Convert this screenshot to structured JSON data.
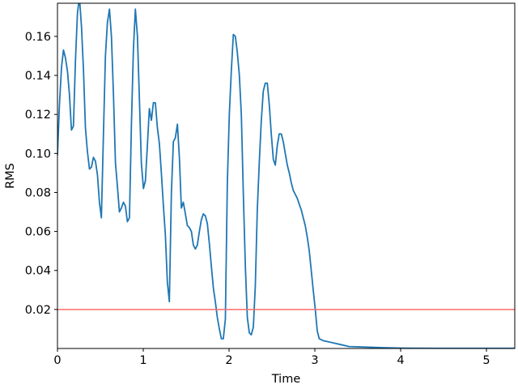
{
  "chart_data": {
    "type": "line",
    "title": "",
    "xlabel": "Time",
    "ylabel": "RMS",
    "xlim": [
      0,
      5.33
    ],
    "ylim": [
      0,
      0.177
    ],
    "xticks": [
      {
        "value": 0,
        "label": "0"
      },
      {
        "value": 1,
        "label": "1"
      },
      {
        "value": 2,
        "label": "2"
      },
      {
        "value": 3,
        "label": "3"
      },
      {
        "value": 4,
        "label": "4"
      },
      {
        "value": 5,
        "label": "5"
      }
    ],
    "yticks": [
      {
        "value": 0.02,
        "label": "0.02"
      },
      {
        "value": 0.04,
        "label": "0.04"
      },
      {
        "value": 0.06,
        "label": "0.06"
      },
      {
        "value": 0.08,
        "label": "0.08"
      },
      {
        "value": 0.1,
        "label": "0.10"
      },
      {
        "value": 0.12,
        "label": "0.12"
      },
      {
        "value": 0.14,
        "label": "0.14"
      },
      {
        "value": 0.16,
        "label": "0.16"
      }
    ],
    "grid": false,
    "legend": "none",
    "series": [
      {
        "color": "#1f77b4",
        "x": [
          0.0,
          0.023,
          0.047,
          0.07,
          0.093,
          0.117,
          0.14,
          0.163,
          0.186,
          0.21,
          0.233,
          0.256,
          0.28,
          0.303,
          0.326,
          0.349,
          0.373,
          0.396,
          0.419,
          0.443,
          0.466,
          0.489,
          0.512,
          0.536,
          0.559,
          0.582,
          0.606,
          0.629,
          0.652,
          0.676,
          0.699,
          0.722,
          0.745,
          0.769,
          0.792,
          0.815,
          0.839,
          0.862,
          0.885,
          0.908,
          0.932,
          0.955,
          0.978,
          1.002,
          1.025,
          1.048,
          1.071,
          1.095,
          1.118,
          1.141,
          1.165,
          1.188,
          1.211,
          1.235,
          1.258,
          1.281,
          1.304,
          1.328,
          1.351,
          1.374,
          1.398,
          1.421,
          1.444,
          1.467,
          1.491,
          1.514,
          1.537,
          1.561,
          1.584,
          1.607,
          1.63,
          1.654,
          1.677,
          1.7,
          1.724,
          1.747,
          1.77,
          1.794,
          1.817,
          1.84,
          1.863,
          1.887,
          1.91,
          1.933,
          1.957,
          1.98,
          2.003,
          2.026,
          2.05,
          2.073,
          2.096,
          2.12,
          2.143,
          2.166,
          2.19,
          2.213,
          2.236,
          2.259,
          2.283,
          2.306,
          2.329,
          2.353,
          2.376,
          2.399,
          2.422,
          2.446,
          2.469,
          2.492,
          2.516,
          2.539,
          2.562,
          2.585,
          2.609,
          2.632,
          2.655,
          2.679,
          2.702,
          2.725,
          2.749,
          2.772,
          2.795,
          2.818,
          2.842,
          2.865,
          2.888,
          2.912,
          2.935,
          2.958,
          2.981,
          3.005,
          3.028,
          3.051,
          3.075,
          3.098,
          3.2,
          3.3,
          3.4,
          3.6,
          3.8,
          4.0,
          4.4,
          4.8,
          5.33
        ],
        "values": [
          0.099,
          0.125,
          0.144,
          0.153,
          0.149,
          0.142,
          0.13,
          0.112,
          0.114,
          0.148,
          0.172,
          0.18,
          0.165,
          0.143,
          0.113,
          0.101,
          0.092,
          0.093,
          0.098,
          0.096,
          0.089,
          0.075,
          0.067,
          0.11,
          0.15,
          0.167,
          0.174,
          0.16,
          0.131,
          0.095,
          0.083,
          0.07,
          0.072,
          0.075,
          0.073,
          0.065,
          0.067,
          0.115,
          0.153,
          0.174,
          0.16,
          0.128,
          0.095,
          0.082,
          0.086,
          0.104,
          0.123,
          0.117,
          0.126,
          0.126,
          0.113,
          0.105,
          0.09,
          0.073,
          0.058,
          0.034,
          0.024,
          0.08,
          0.106,
          0.108,
          0.115,
          0.098,
          0.072,
          0.075,
          0.069,
          0.063,
          0.062,
          0.06,
          0.053,
          0.051,
          0.053,
          0.06,
          0.066,
          0.069,
          0.068,
          0.064,
          0.054,
          0.042,
          0.031,
          0.024,
          0.016,
          0.01,
          0.005,
          0.005,
          0.015,
          0.085,
          0.12,
          0.142,
          0.161,
          0.16,
          0.152,
          0.14,
          0.12,
          0.08,
          0.042,
          0.016,
          0.008,
          0.007,
          0.011,
          0.032,
          0.071,
          0.096,
          0.117,
          0.132,
          0.136,
          0.136,
          0.125,
          0.11,
          0.097,
          0.094,
          0.104,
          0.11,
          0.11,
          0.106,
          0.1,
          0.094,
          0.09,
          0.085,
          0.081,
          0.079,
          0.077,
          0.074,
          0.071,
          0.067,
          0.063,
          0.057,
          0.05,
          0.04,
          0.03,
          0.02,
          0.009,
          0.005,
          0.0045,
          0.004,
          0.003,
          0.002,
          0.001,
          0.0007,
          0.0004,
          0.0002,
          0.0001,
          0.0001,
          0.0001
        ]
      },
      {
        "color": "#ff6b6b",
        "x": [
          0,
          5.33
        ],
        "values": [
          0.02,
          0.02
        ]
      }
    ]
  }
}
